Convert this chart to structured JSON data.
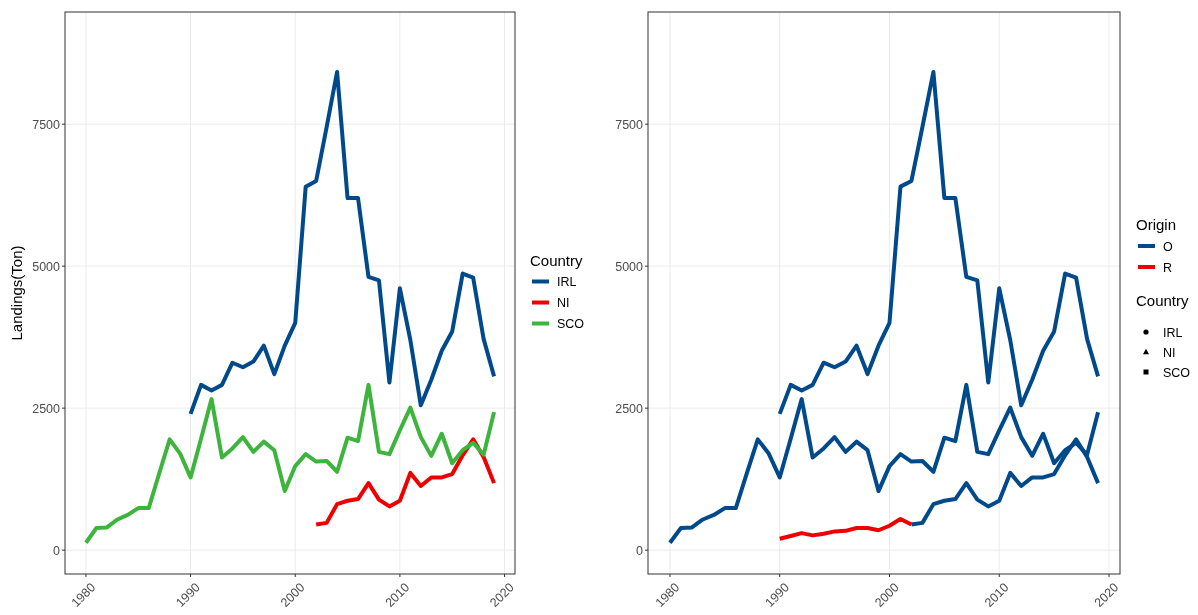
{
  "chart_data": [
    {
      "type": "line",
      "ylabel": "Landings(Ton)",
      "legend_title": "Country",
      "legend": "right",
      "grid": true,
      "xlim": [
        1978,
        2021
      ],
      "xticks": [
        1980,
        1990,
        2000,
        2010,
        2020
      ],
      "ylim": [
        -420,
        9475
      ],
      "yticks": [
        0,
        2500,
        5000,
        7500
      ],
      "series": [
        {
          "name": "IRL",
          "color": "#004a8c",
          "x": [
            1990,
            1991,
            1992,
            1993,
            1994,
            1995,
            1996,
            1997,
            1998,
            1999,
            2000,
            2001,
            2002,
            2003,
            2004,
            2005,
            2006,
            2007,
            2008,
            2009,
            2010,
            2011,
            2012,
            2013,
            2014,
            2015,
            2016,
            2017,
            2018,
            2019
          ],
          "values": [
            2400,
            2910,
            2810,
            2910,
            3300,
            3220,
            3320,
            3600,
            3100,
            3600,
            4000,
            6400,
            6500,
            7450,
            8420,
            6200,
            6200,
            4810,
            4750,
            2950,
            4610,
            3700,
            2550,
            3000,
            3510,
            3850,
            4870,
            4800,
            3720,
            3060
          ]
        },
        {
          "name": "NI",
          "color": "#ee0000",
          "x": [
            2002,
            2003,
            2004,
            2005,
            2006,
            2007,
            2008,
            2009,
            2010,
            2011,
            2012,
            2013,
            2014,
            2015,
            2016,
            2017,
            2018,
            2019
          ],
          "values": [
            450,
            480,
            810,
            870,
            900,
            1180,
            890,
            770,
            870,
            1360,
            1130,
            1280,
            1280,
            1340,
            1670,
            1950,
            1640,
            1180
          ]
        },
        {
          "name": "SCO",
          "color": "#3db53d",
          "x": [
            1980,
            1981,
            1982,
            1983,
            1984,
            1985,
            1986,
            1987,
            1988,
            1989,
            1990,
            1991,
            1992,
            1993,
            1994,
            1995,
            1996,
            1997,
            1998,
            1999,
            2000,
            2001,
            2002,
            2003,
            2004,
            2005,
            2006,
            2007,
            2008,
            2009,
            2010,
            2011,
            2012,
            2013,
            2014,
            2015,
            2016,
            2017,
            2018,
            2019
          ],
          "values": [
            130,
            390,
            400,
            540,
            620,
            740,
            740,
            1350,
            1950,
            1700,
            1280,
            1960,
            2660,
            1630,
            1790,
            1990,
            1730,
            1910,
            1760,
            1040,
            1480,
            1690,
            1560,
            1570,
            1380,
            1980,
            1920,
            2910,
            1730,
            1690,
            2110,
            2510,
            1990,
            1660,
            2050,
            1530,
            1760,
            1890,
            1680,
            2430
          ]
        }
      ]
    },
    {
      "type": "line",
      "legend_title": "Origin",
      "legend": "right",
      "grid": true,
      "xlim": [
        1978,
        2021
      ],
      "xticks": [
        1980,
        1990,
        2000,
        2010,
        2020
      ],
      "ylim": [
        -420,
        9475
      ],
      "yticks": [
        0,
        2500,
        5000,
        7500
      ],
      "annotations": [
        "Country",
        "IRL",
        "NI",
        "SCO"
      ],
      "series": [
        {
          "name": "O",
          "color": "#004a8c",
          "x": [
            1990,
            1991,
            1992,
            1993,
            1994,
            1995,
            1996,
            1997,
            1998,
            1999,
            2000,
            2001,
            2002,
            2003,
            2004,
            2005,
            2006,
            2007,
            2008,
            2009,
            2010,
            2011,
            2012,
            2013,
            2014,
            2015,
            2016,
            2017,
            2018,
            2019
          ],
          "values": [
            2400,
            2910,
            2810,
            2910,
            3300,
            3220,
            3320,
            3600,
            3100,
            3600,
            4000,
            6400,
            6500,
            7450,
            8420,
            6200,
            6200,
            4810,
            4750,
            2950,
            4610,
            3700,
            2550,
            3000,
            3510,
            3850,
            4870,
            4800,
            3720,
            3060
          ]
        },
        {
          "color": "#004a8c",
          "x": [
            2002,
            2003,
            2004,
            2005,
            2006,
            2007,
            2008,
            2009,
            2010,
            2011,
            2012,
            2013,
            2014,
            2015,
            2016,
            2017,
            2018,
            2019
          ],
          "values": [
            450,
            480,
            810,
            870,
            900,
            1180,
            890,
            770,
            870,
            1360,
            1130,
            1280,
            1280,
            1340,
            1670,
            1950,
            1640,
            1180
          ]
        },
        {
          "color": "#004a8c",
          "x": [
            1980,
            1981,
            1982,
            1983,
            1984,
            1985,
            1986,
            1987,
            1988,
            1989,
            1990,
            1991,
            1992,
            1993,
            1994,
            1995,
            1996,
            1997,
            1998,
            1999,
            2000,
            2001,
            2002,
            2003,
            2004,
            2005,
            2006,
            2007,
            2008,
            2009,
            2010,
            2011,
            2012,
            2013,
            2014,
            2015,
            2016,
            2017,
            2018,
            2019
          ],
          "values": [
            130,
            390,
            400,
            540,
            620,
            740,
            740,
            1350,
            1950,
            1700,
            1280,
            1960,
            2660,
            1630,
            1790,
            1990,
            1730,
            1910,
            1760,
            1040,
            1480,
            1690,
            1560,
            1570,
            1380,
            1980,
            1920,
            2910,
            1730,
            1690,
            2110,
            2510,
            1990,
            1660,
            2050,
            1530,
            1760,
            1890,
            1680,
            2430
          ]
        },
        {
          "name": "R",
          "color": "#ee0000",
          "x": [
            1990,
            1991,
            1992,
            1993,
            1994,
            1995,
            1996,
            1997,
            1998,
            1999,
            2000,
            2001,
            2002
          ],
          "values": [
            200,
            250,
            300,
            260,
            290,
            330,
            340,
            390,
            390,
            350,
            430,
            550,
            450
          ]
        }
      ]
    }
  ]
}
